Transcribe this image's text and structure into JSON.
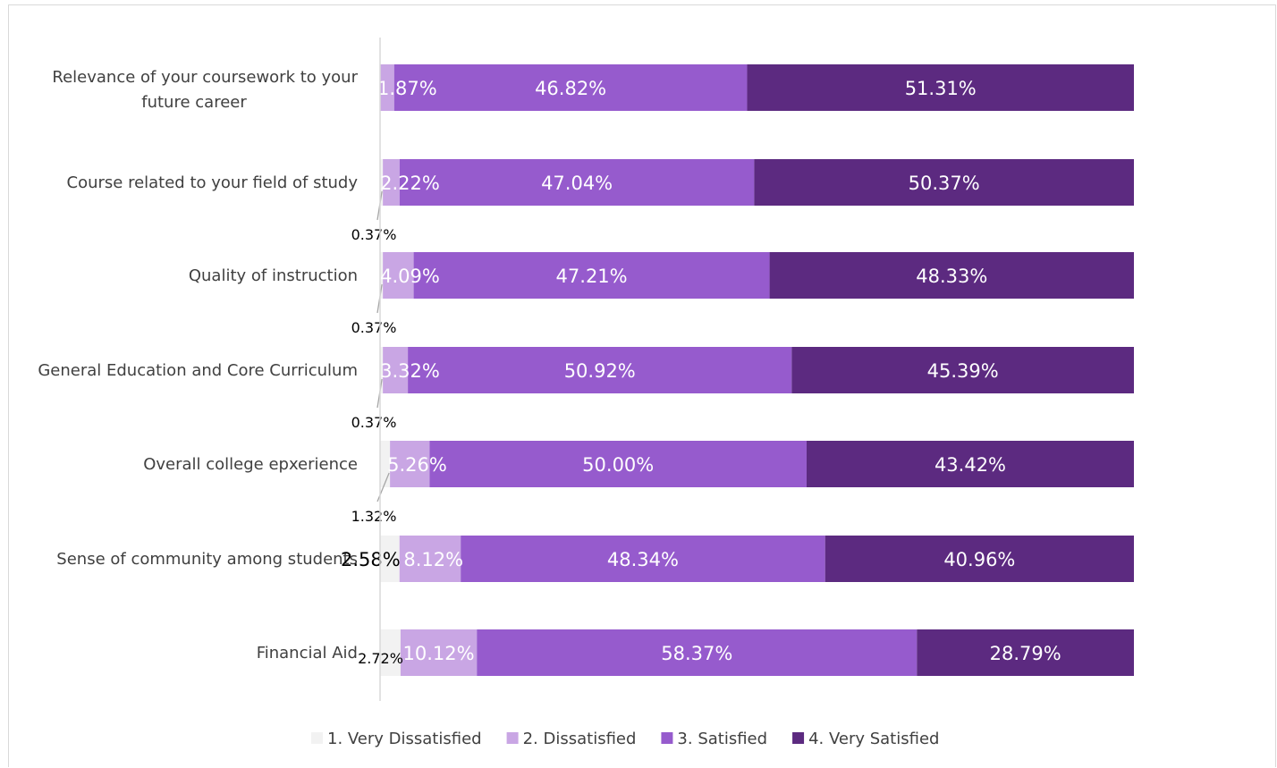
{
  "chart_data": {
    "type": "bar",
    "orientation": "horizontal",
    "stacked": true,
    "percent_stacked": true,
    "categories": [
      "Relevance of your coursework to your future career",
      "Course related to your field of study",
      "Quality of instruction",
      "General Education and Core Curriculum",
      "Overall college epxerience",
      "Sense of community among students",
      "Financial Aid"
    ],
    "category_lines": [
      [
        "Relevance of your coursework to your",
        "future career"
      ],
      [
        "Course related to your field of study"
      ],
      [
        "Quality of instruction"
      ],
      [
        "General Education and Core Curriculum"
      ],
      [
        "Overall college epxerience"
      ],
      [
        "Sense of community among students"
      ],
      [
        "Financial Aid"
      ]
    ],
    "series": [
      {
        "name": "1. Very Dissatisfied",
        "color": "#f2f2f2",
        "values": [
          0,
          0.37,
          0.37,
          0.37,
          1.32,
          2.58,
          2.72
        ],
        "labels": [
          "",
          "0.37%",
          "0.37%",
          "0.37%",
          "1.32%",
          "2.58%",
          "2.72%"
        ]
      },
      {
        "name": "2. Dissatisfied",
        "color": "#c9a6e4",
        "values": [
          1.87,
          2.22,
          4.09,
          3.32,
          5.26,
          8.12,
          10.12
        ],
        "labels": [
          "1.87%",
          "2.22%",
          "4.09%",
          "3.32%",
          "5.26%",
          "8.12%",
          "10.12%"
        ]
      },
      {
        "name": "3. Satisfied",
        "color": "#965bcd",
        "values": [
          46.82,
          47.04,
          47.21,
          50.92,
          50.0,
          48.34,
          58.37
        ],
        "labels": [
          "46.82%",
          "47.04%",
          "47.21%",
          "50.92%",
          "50.00%",
          "48.34%",
          "58.37%"
        ]
      },
      {
        "name": "4. Very Satisfied",
        "color": "#5c2a80",
        "values": [
          51.31,
          50.37,
          48.33,
          45.39,
          43.42,
          40.96,
          28.79
        ],
        "labels": [
          "51.31%",
          "50.37%",
          "48.33%",
          "45.39%",
          "43.42%",
          "40.96%",
          "28.79%"
        ]
      }
    ],
    "xlim": [
      0,
      100
    ],
    "grid": false,
    "legend_position": "bottom"
  }
}
